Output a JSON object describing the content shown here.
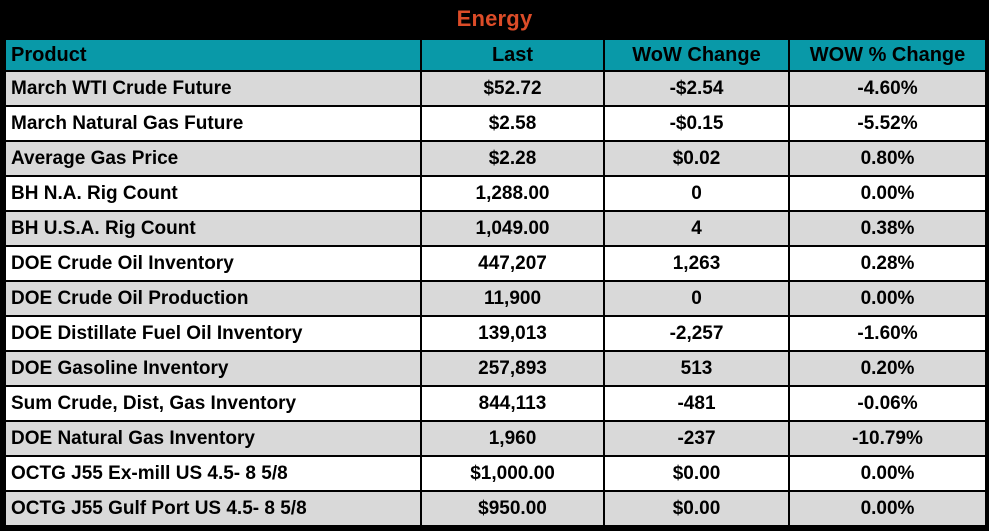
{
  "title": "Energy",
  "colors": {
    "title_text": "#DC4C28",
    "title_bar_bg": "#000000",
    "header_bg": "#0999A8",
    "row_alt_bg": "#D9D9D9",
    "row_bg": "#FFFFFF",
    "grid_border": "#000000"
  },
  "chart_data": {
    "type": "table",
    "title": "Energy",
    "columns": [
      "Product",
      "Last",
      "WoW Change",
      "WOW % Change"
    ],
    "column_keys": [
      "product",
      "last",
      "wow_change",
      "wow_pct_change"
    ],
    "rows": [
      [
        "March WTI Crude Future",
        "$52.72",
        "-$2.54",
        "-4.60%"
      ],
      [
        "March Natural Gas Future",
        "$2.58",
        "-$0.15",
        "-5.52%"
      ],
      [
        "Average Gas Price",
        "$2.28",
        "$0.02",
        "0.80%"
      ],
      [
        "BH N.A. Rig Count",
        "1,288.00",
        "0",
        "0.00%"
      ],
      [
        "BH U.S.A. Rig Count",
        "1,049.00",
        "4",
        "0.38%"
      ],
      [
        "DOE Crude Oil Inventory",
        "447,207",
        "1,263",
        "0.28%"
      ],
      [
        "DOE Crude Oil Production",
        "11,900",
        "0",
        "0.00%"
      ],
      [
        "DOE Distillate Fuel Oil Inventory",
        "139,013",
        "-2,257",
        "-1.60%"
      ],
      [
        "DOE Gasoline Inventory",
        "257,893",
        "513",
        "0.20%"
      ],
      [
        "Sum Crude, Dist, Gas Inventory",
        "844,113",
        "-481",
        "-0.06%"
      ],
      [
        "DOE Natural Gas Inventory",
        "1,960",
        "-237",
        "-10.79%"
      ],
      [
        "OCTG J55 Ex-mill US 4.5- 8 5/8",
        "$1,000.00",
        "$0.00",
        "0.00%"
      ],
      [
        "OCTG J55 Gulf Port US 4.5- 8 5/8",
        "$950.00",
        "$0.00",
        "0.00%"
      ]
    ]
  }
}
